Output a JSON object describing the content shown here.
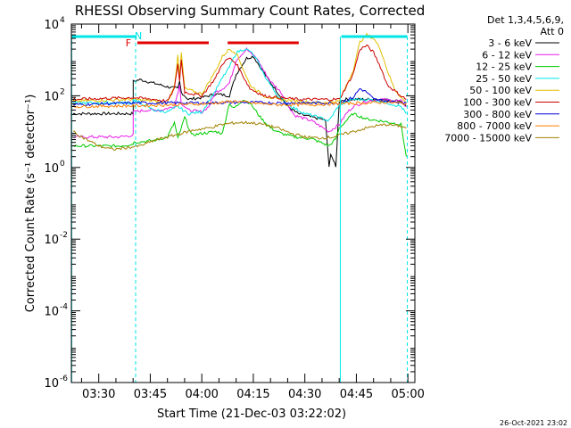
{
  "chart_data": {
    "type": "line",
    "title": "RHESSI Observing Summary Count Rates, Corrected",
    "xlabel": "Start Time (21-Dec-03 03:22:02)",
    "ylabel": "Corrected Count Rate (s⁻¹ detector⁻¹)",
    "timestamp": "26-Oct-2021 23:02",
    "x_units": "minutes after 03:22:02",
    "xlim": [
      0,
      100
    ],
    "ylim_log10": [
      -6,
      4
    ],
    "x_ticks": [
      {
        "label": "03:30",
        "value": 7.97
      },
      {
        "label": "03:45",
        "value": 22.97
      },
      {
        "label": "04:00",
        "value": 37.97
      },
      {
        "label": "04:15",
        "value": 52.97
      },
      {
        "label": "04:30",
        "value": 67.97
      },
      {
        "label": "04:45",
        "value": 82.97
      },
      {
        "label": "05:00",
        "value": 97.97
      }
    ],
    "y_ticks": [
      {
        "base": "10",
        "exp": "4",
        "value": 4
      },
      {
        "base": "10",
        "exp": "2",
        "value": 2
      },
      {
        "base": "10",
        "exp": "0",
        "value": 0
      },
      {
        "base": "10",
        "exp": "-2",
        "value": -2
      },
      {
        "base": "10",
        "exp": "-4",
        "value": -4
      },
      {
        "base": "10",
        "exp": "-6",
        "value": -6
      }
    ],
    "legend": {
      "title_lines": [
        "Det 1,3,4,5,6,9,",
        "Att 0"
      ],
      "position": "right"
    },
    "series": [
      {
        "name": "3 - 6 keV",
        "color": "#000000",
        "points": [
          [
            0.5,
            1.5
          ],
          [
            18,
            1.5
          ],
          [
            18,
            2.4
          ],
          [
            20,
            2.45
          ],
          [
            24,
            2.35
          ],
          [
            28,
            2.25
          ],
          [
            31,
            2.2
          ],
          [
            31.5,
            2.4
          ],
          [
            32,
            2.1
          ],
          [
            34,
            1.9
          ],
          [
            38,
            1.95
          ],
          [
            42,
            2.05
          ],
          [
            46,
            2.0
          ],
          [
            48,
            2.6
          ],
          [
            51,
            3.05
          ],
          [
            53,
            3.1
          ],
          [
            55,
            2.8
          ],
          [
            57,
            2.5
          ],
          [
            60,
            2.1
          ],
          [
            63,
            1.7
          ],
          [
            66,
            1.5
          ],
          [
            70,
            1.4
          ],
          [
            73,
            1.35
          ],
          [
            74,
            1.3
          ],
          [
            75,
            0.0
          ],
          [
            75.5,
            0.4
          ],
          [
            77,
            0.0
          ],
          [
            78,
            1.85
          ],
          [
            80,
            1.9
          ],
          [
            86,
            1.9
          ],
          [
            89,
            1.9
          ],
          [
            96,
            1.85
          ],
          [
            97.5,
            1.7
          ]
        ]
      },
      {
        "name": "6 - 12 keV",
        "color": "#e81ce8",
        "points": [
          [
            0.5,
            0.85
          ],
          [
            14,
            0.85
          ],
          [
            18,
            0.9
          ],
          [
            18,
            1.55
          ],
          [
            22,
            1.6
          ],
          [
            26,
            1.6
          ],
          [
            30,
            1.7
          ],
          [
            31.5,
            2.3
          ],
          [
            32,
            1.8
          ],
          [
            34,
            1.6
          ],
          [
            38,
            1.55
          ],
          [
            40,
            1.7
          ],
          [
            42,
            2.1
          ],
          [
            44,
            2.2
          ],
          [
            46,
            2.35
          ],
          [
            48,
            3.0
          ],
          [
            51,
            3.3
          ],
          [
            52,
            3.2
          ],
          [
            54,
            3.05
          ],
          [
            56,
            2.7
          ],
          [
            58,
            2.4
          ],
          [
            61,
            2.1
          ],
          [
            63,
            1.75
          ],
          [
            65,
            1.45
          ],
          [
            70,
            1.3
          ],
          [
            75,
            1.0
          ],
          [
            78,
            1.2
          ],
          [
            80,
            1.5
          ],
          [
            82,
            1.7
          ],
          [
            86,
            1.85
          ],
          [
            90,
            1.9
          ],
          [
            96,
            1.85
          ],
          [
            97.5,
            1.7
          ]
        ]
      },
      {
        "name": "12 - 25 keV",
        "color": "#00cc00",
        "points": [
          [
            0.5,
            0.6
          ],
          [
            14,
            0.6
          ],
          [
            18,
            0.65
          ],
          [
            18,
            0.7
          ],
          [
            24,
            0.75
          ],
          [
            28,
            0.85
          ],
          [
            30,
            1.25
          ],
          [
            31,
            0.8
          ],
          [
            33,
            1.4
          ],
          [
            35,
            0.9
          ],
          [
            38,
            0.95
          ],
          [
            42,
            1.0
          ],
          [
            44,
            0.95
          ],
          [
            46,
            1.8
          ],
          [
            47,
            1.65
          ],
          [
            48,
            1.7
          ],
          [
            50,
            1.9
          ],
          [
            52,
            1.8
          ],
          [
            55,
            1.4
          ],
          [
            58,
            1.1
          ],
          [
            61,
            0.95
          ],
          [
            65,
            0.85
          ],
          [
            70,
            0.8
          ],
          [
            75,
            0.6
          ],
          [
            77,
            0.8
          ],
          [
            78,
            1.1
          ],
          [
            80,
            1.3
          ],
          [
            82,
            1.5
          ],
          [
            86,
            1.35
          ],
          [
            90,
            1.3
          ],
          [
            96,
            1.2
          ],
          [
            97.5,
            0.3
          ]
        ]
      },
      {
        "name": "25 - 50 keV",
        "color": "#00e5e5",
        "points": [
          [
            0.5,
            1.8
          ],
          [
            14,
            1.8
          ],
          [
            18,
            1.8
          ],
          [
            18,
            1.9
          ],
          [
            24,
            1.6
          ],
          [
            28,
            1.55
          ],
          [
            31,
            1.7
          ],
          [
            34,
            1.5
          ],
          [
            38,
            1.55
          ],
          [
            42,
            2.15
          ],
          [
            44,
            2.5
          ],
          [
            46,
            2.8
          ],
          [
            48,
            3.2
          ],
          [
            50,
            3.3
          ],
          [
            52,
            3.25
          ],
          [
            54,
            3.0
          ],
          [
            56,
            2.6
          ],
          [
            60,
            2.0
          ],
          [
            64,
            1.7
          ],
          [
            68,
            1.5
          ],
          [
            72,
            1.4
          ],
          [
            75,
            1.3
          ],
          [
            78,
            1.75
          ],
          [
            82,
            1.9
          ],
          [
            86,
            1.9
          ],
          [
            90,
            1.85
          ],
          [
            96,
            1.7
          ],
          [
            97.5,
            1.5
          ]
        ]
      },
      {
        "name": "50 - 100 keV",
        "color": "#e0c000",
        "points": [
          [
            0.5,
            1.85
          ],
          [
            18,
            1.9
          ],
          [
            24,
            1.85
          ],
          [
            28,
            1.8
          ],
          [
            30,
            2.3
          ],
          [
            31,
            3.1
          ],
          [
            31.5,
            2.5
          ],
          [
            32,
            3.2
          ],
          [
            33,
            2.2
          ],
          [
            38,
            2.05
          ],
          [
            42,
            2.7
          ],
          [
            44,
            3.1
          ],
          [
            46,
            3.3
          ],
          [
            48,
            3.2
          ],
          [
            52,
            2.3
          ],
          [
            56,
            2.0
          ],
          [
            60,
            1.9
          ],
          [
            66,
            1.85
          ],
          [
            72,
            1.8
          ],
          [
            78,
            1.85
          ],
          [
            82,
            2.7
          ],
          [
            84,
            3.5
          ],
          [
            86,
            3.7
          ],
          [
            88,
            3.6
          ],
          [
            90,
            3.3
          ],
          [
            92,
            2.7
          ],
          [
            94,
            2.2
          ],
          [
            96,
            1.95
          ],
          [
            97.5,
            1.8
          ]
        ]
      },
      {
        "name": "100 - 300 keV",
        "color": "#cc0000",
        "points": [
          [
            0.5,
            1.9
          ],
          [
            18,
            1.95
          ],
          [
            24,
            1.9
          ],
          [
            28,
            1.85
          ],
          [
            30,
            2.2
          ],
          [
            31,
            2.9
          ],
          [
            31.5,
            2.4
          ],
          [
            32,
            3.0
          ],
          [
            33,
            2.1
          ],
          [
            38,
            2.0
          ],
          [
            42,
            2.5
          ],
          [
            44,
            2.9
          ],
          [
            46,
            3.05
          ],
          [
            48,
            2.9
          ],
          [
            52,
            2.2
          ],
          [
            56,
            2.0
          ],
          [
            60,
            1.95
          ],
          [
            66,
            1.9
          ],
          [
            72,
            1.9
          ],
          [
            78,
            1.9
          ],
          [
            82,
            2.6
          ],
          [
            84,
            3.3
          ],
          [
            86,
            3.4
          ],
          [
            88,
            3.2
          ],
          [
            90,
            2.8
          ],
          [
            92,
            2.3
          ],
          [
            96,
            2.0
          ],
          [
            97.5,
            1.9
          ]
        ]
      },
      {
        "name": "300 - 800 keV",
        "color": "#0000dd",
        "points": [
          [
            0.5,
            1.75
          ],
          [
            18,
            1.8
          ],
          [
            30,
            1.8
          ],
          [
            40,
            1.8
          ],
          [
            50,
            1.82
          ],
          [
            60,
            1.8
          ],
          [
            70,
            1.8
          ],
          [
            78,
            1.8
          ],
          [
            82,
            1.95
          ],
          [
            84,
            2.2
          ],
          [
            86,
            2.1
          ],
          [
            88,
            1.9
          ],
          [
            92,
            1.85
          ],
          [
            97.5,
            1.8
          ]
        ]
      },
      {
        "name": "800 - 7000 keV",
        "color": "#ff8000",
        "points": [
          [
            0.5,
            1.7
          ],
          [
            18,
            1.72
          ],
          [
            30,
            1.75
          ],
          [
            40,
            1.78
          ],
          [
            48,
            1.85
          ],
          [
            52,
            1.8
          ],
          [
            60,
            1.75
          ],
          [
            70,
            1.75
          ],
          [
            78,
            1.78
          ],
          [
            86,
            1.8
          ],
          [
            92,
            1.82
          ],
          [
            97.5,
            1.78
          ]
        ]
      },
      {
        "name": "7000 - 15000 keV",
        "color": "#a08000",
        "points": [
          [
            0.5,
            1.0
          ],
          [
            4,
            0.8
          ],
          [
            8,
            0.6
          ],
          [
            12,
            0.5
          ],
          [
            16,
            0.55
          ],
          [
            20,
            0.6
          ],
          [
            24,
            0.75
          ],
          [
            28,
            0.85
          ],
          [
            32,
            0.95
          ],
          [
            36,
            1.05
          ],
          [
            40,
            1.1
          ],
          [
            44,
            1.2
          ],
          [
            48,
            1.25
          ],
          [
            52,
            1.25
          ],
          [
            56,
            1.2
          ],
          [
            60,
            1.1
          ],
          [
            64,
            0.95
          ],
          [
            68,
            0.85
          ],
          [
            72,
            0.82
          ],
          [
            76,
            0.85
          ],
          [
            80,
            0.95
          ],
          [
            84,
            1.05
          ],
          [
            88,
            1.15
          ],
          [
            92,
            1.2
          ],
          [
            96,
            1.15
          ],
          [
            97.5,
            1.1
          ]
        ]
      }
    ],
    "attenuator_bars": [
      {
        "color": "#00e5e5",
        "segments": [
          [
            0,
            18.7
          ],
          [
            78.6,
            97.8
          ]
        ]
      }
    ],
    "flag_bars": [
      {
        "label": "F",
        "color": "#e00000",
        "segments": [
          [
            19.2,
            40
          ],
          [
            45.5,
            66.2
          ]
        ]
      }
    ],
    "n_label": {
      "text": "N",
      "color": "#00e5e5",
      "value": 19.0
    },
    "vertical_lines": [
      {
        "value": 18.7,
        "style": "dashed"
      },
      {
        "value": 78.3,
        "style": "solid"
      },
      {
        "value": 97.8,
        "style": "dashed"
      },
      {
        "value": 0.1,
        "style": "solid"
      }
    ]
  }
}
